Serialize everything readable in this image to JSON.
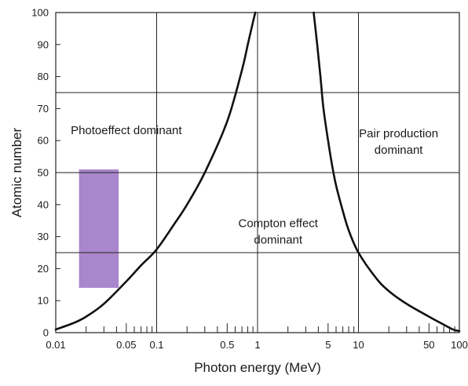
{
  "chart_data": {
    "type": "line",
    "title": "",
    "xlabel": "Photon energy (MeV)",
    "ylabel": "Atomic number",
    "x_scale": "log",
    "xlim": [
      0.01,
      100
    ],
    "ylim": [
      0,
      100
    ],
    "x_tick_values": [
      0.01,
      0.05,
      0.1,
      0.5,
      1,
      5,
      10,
      50,
      100
    ],
    "x_tick_labels": [
      "0.01",
      "0.05",
      "0.1",
      "0.5",
      "1",
      "5",
      "10",
      "50",
      "100"
    ],
    "y_tick_values": [
      0,
      10,
      20,
      30,
      40,
      50,
      60,
      70,
      80,
      90,
      100
    ],
    "y_tick_labels": [
      "0",
      "10",
      "20",
      "30",
      "40",
      "50",
      "60",
      "70",
      "80",
      "90",
      "100"
    ],
    "gridlines": {
      "x": [
        0.1,
        1,
        10
      ],
      "y": [
        25,
        50,
        75
      ]
    },
    "series": [
      {
        "name": "",
        "color": "#111111",
        "x": [
          0.01,
          0.015,
          0.02,
          0.03,
          0.05,
          0.07,
          0.1,
          0.15,
          0.2,
          0.3,
          0.5,
          0.7,
          0.8,
          0.9,
          0.95
        ],
        "y": [
          1,
          3,
          5,
          9,
          16,
          21,
          26,
          34,
          40,
          50,
          66,
          82,
          90,
          97,
          100
        ]
      },
      {
        "name": "",
        "color": "#111111",
        "x": [
          3.6,
          3.9,
          4.2,
          4.5,
          5,
          5.5,
          6,
          7,
          8,
          10,
          15,
          20,
          30,
          50,
          70,
          80,
          90,
          100
        ],
        "y": [
          100,
          90,
          80,
          70,
          60,
          52,
          46,
          38,
          32,
          25,
          17,
          13,
          9,
          5,
          2.5,
          1.5,
          0.8,
          0.5
        ]
      }
    ],
    "regions": [
      {
        "label": "Photoeffect dominant",
        "x": 0.05,
        "y": 62
      },
      {
        "label": "Compton effect\ndominant",
        "x": 1.6,
        "y": 33
      },
      {
        "label": "Pair production\ndominant",
        "x": 25,
        "y": 61
      }
    ],
    "highlight_box": {
      "x_range": [
        0.017,
        0.042
      ],
      "y_range": [
        14,
        51
      ],
      "color": "#a57fc9"
    }
  }
}
